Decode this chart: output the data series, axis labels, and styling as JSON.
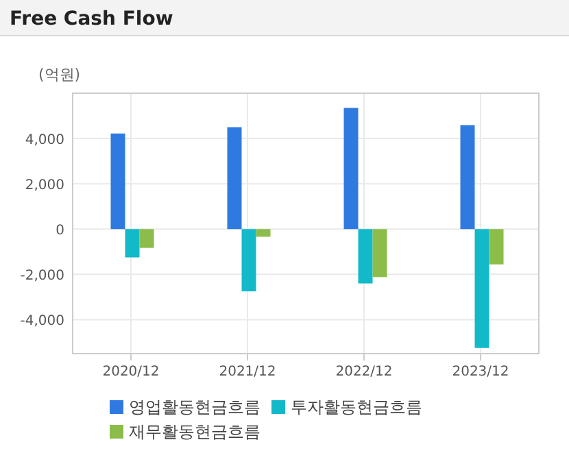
{
  "chart_data": {
    "type": "bar",
    "title": "Free Cash Flow",
    "ylabel": "(억원)",
    "categories": [
      "2020/12",
      "2021/12",
      "2022/12",
      "2023/12"
    ],
    "series": [
      {
        "name": "영업활동현금흐름",
        "color": "#2f7ae0",
        "values": [
          4220,
          4500,
          5350,
          4590
        ]
      },
      {
        "name": "투자활동현금흐름",
        "color": "#12b9c9",
        "values": [
          -1250,
          -2750,
          -2400,
          -5250
        ]
      },
      {
        "name": "재무활동현금흐름",
        "color": "#8cbd4b",
        "values": [
          -830,
          -340,
          -2120,
          -1560
        ]
      }
    ],
    "ylim": [
      -5500,
      6000
    ],
    "yticks": [
      {
        "value": -4000,
        "label": "-4,000"
      },
      {
        "value": -2000,
        "label": "-2,000"
      },
      0,
      {
        "value": 2000,
        "label": "2,000"
      },
      {
        "value": 4000,
        "label": "4,000"
      }
    ],
    "grid": true,
    "legend": "bottom"
  }
}
